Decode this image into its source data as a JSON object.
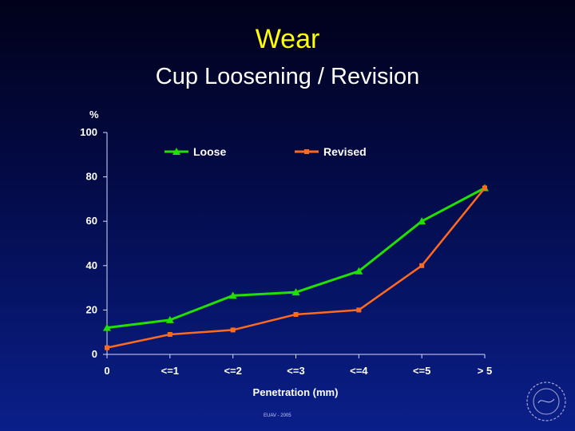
{
  "slide": {
    "title": "Wear",
    "subtitle": "Cup Loosening / Revision",
    "footer": "EUAV - 2005"
  },
  "colors": {
    "loose": "#22e000",
    "revised": "#ff6a1f",
    "title": "#ffff00",
    "axis": "#d8d8ff"
  },
  "chart_data": {
    "type": "line",
    "title": "",
    "xlabel": "Penetration (mm)",
    "ylabel": "%",
    "categories": [
      "0",
      "<=1",
      "<=2",
      "<=3",
      "<=4",
      "<=5",
      "> 5"
    ],
    "ylim": [
      0,
      100
    ],
    "yticks": [
      0,
      20,
      40,
      60,
      80,
      100
    ],
    "grid": false,
    "legend_position": "top",
    "series": [
      {
        "name": "Loose",
        "marker": "triangle",
        "values": [
          12,
          15.5,
          26.5,
          28,
          37.5,
          60,
          75
        ]
      },
      {
        "name": "Revised",
        "marker": "square",
        "values": [
          3,
          9,
          11,
          18,
          20,
          40,
          75
        ]
      }
    ]
  }
}
